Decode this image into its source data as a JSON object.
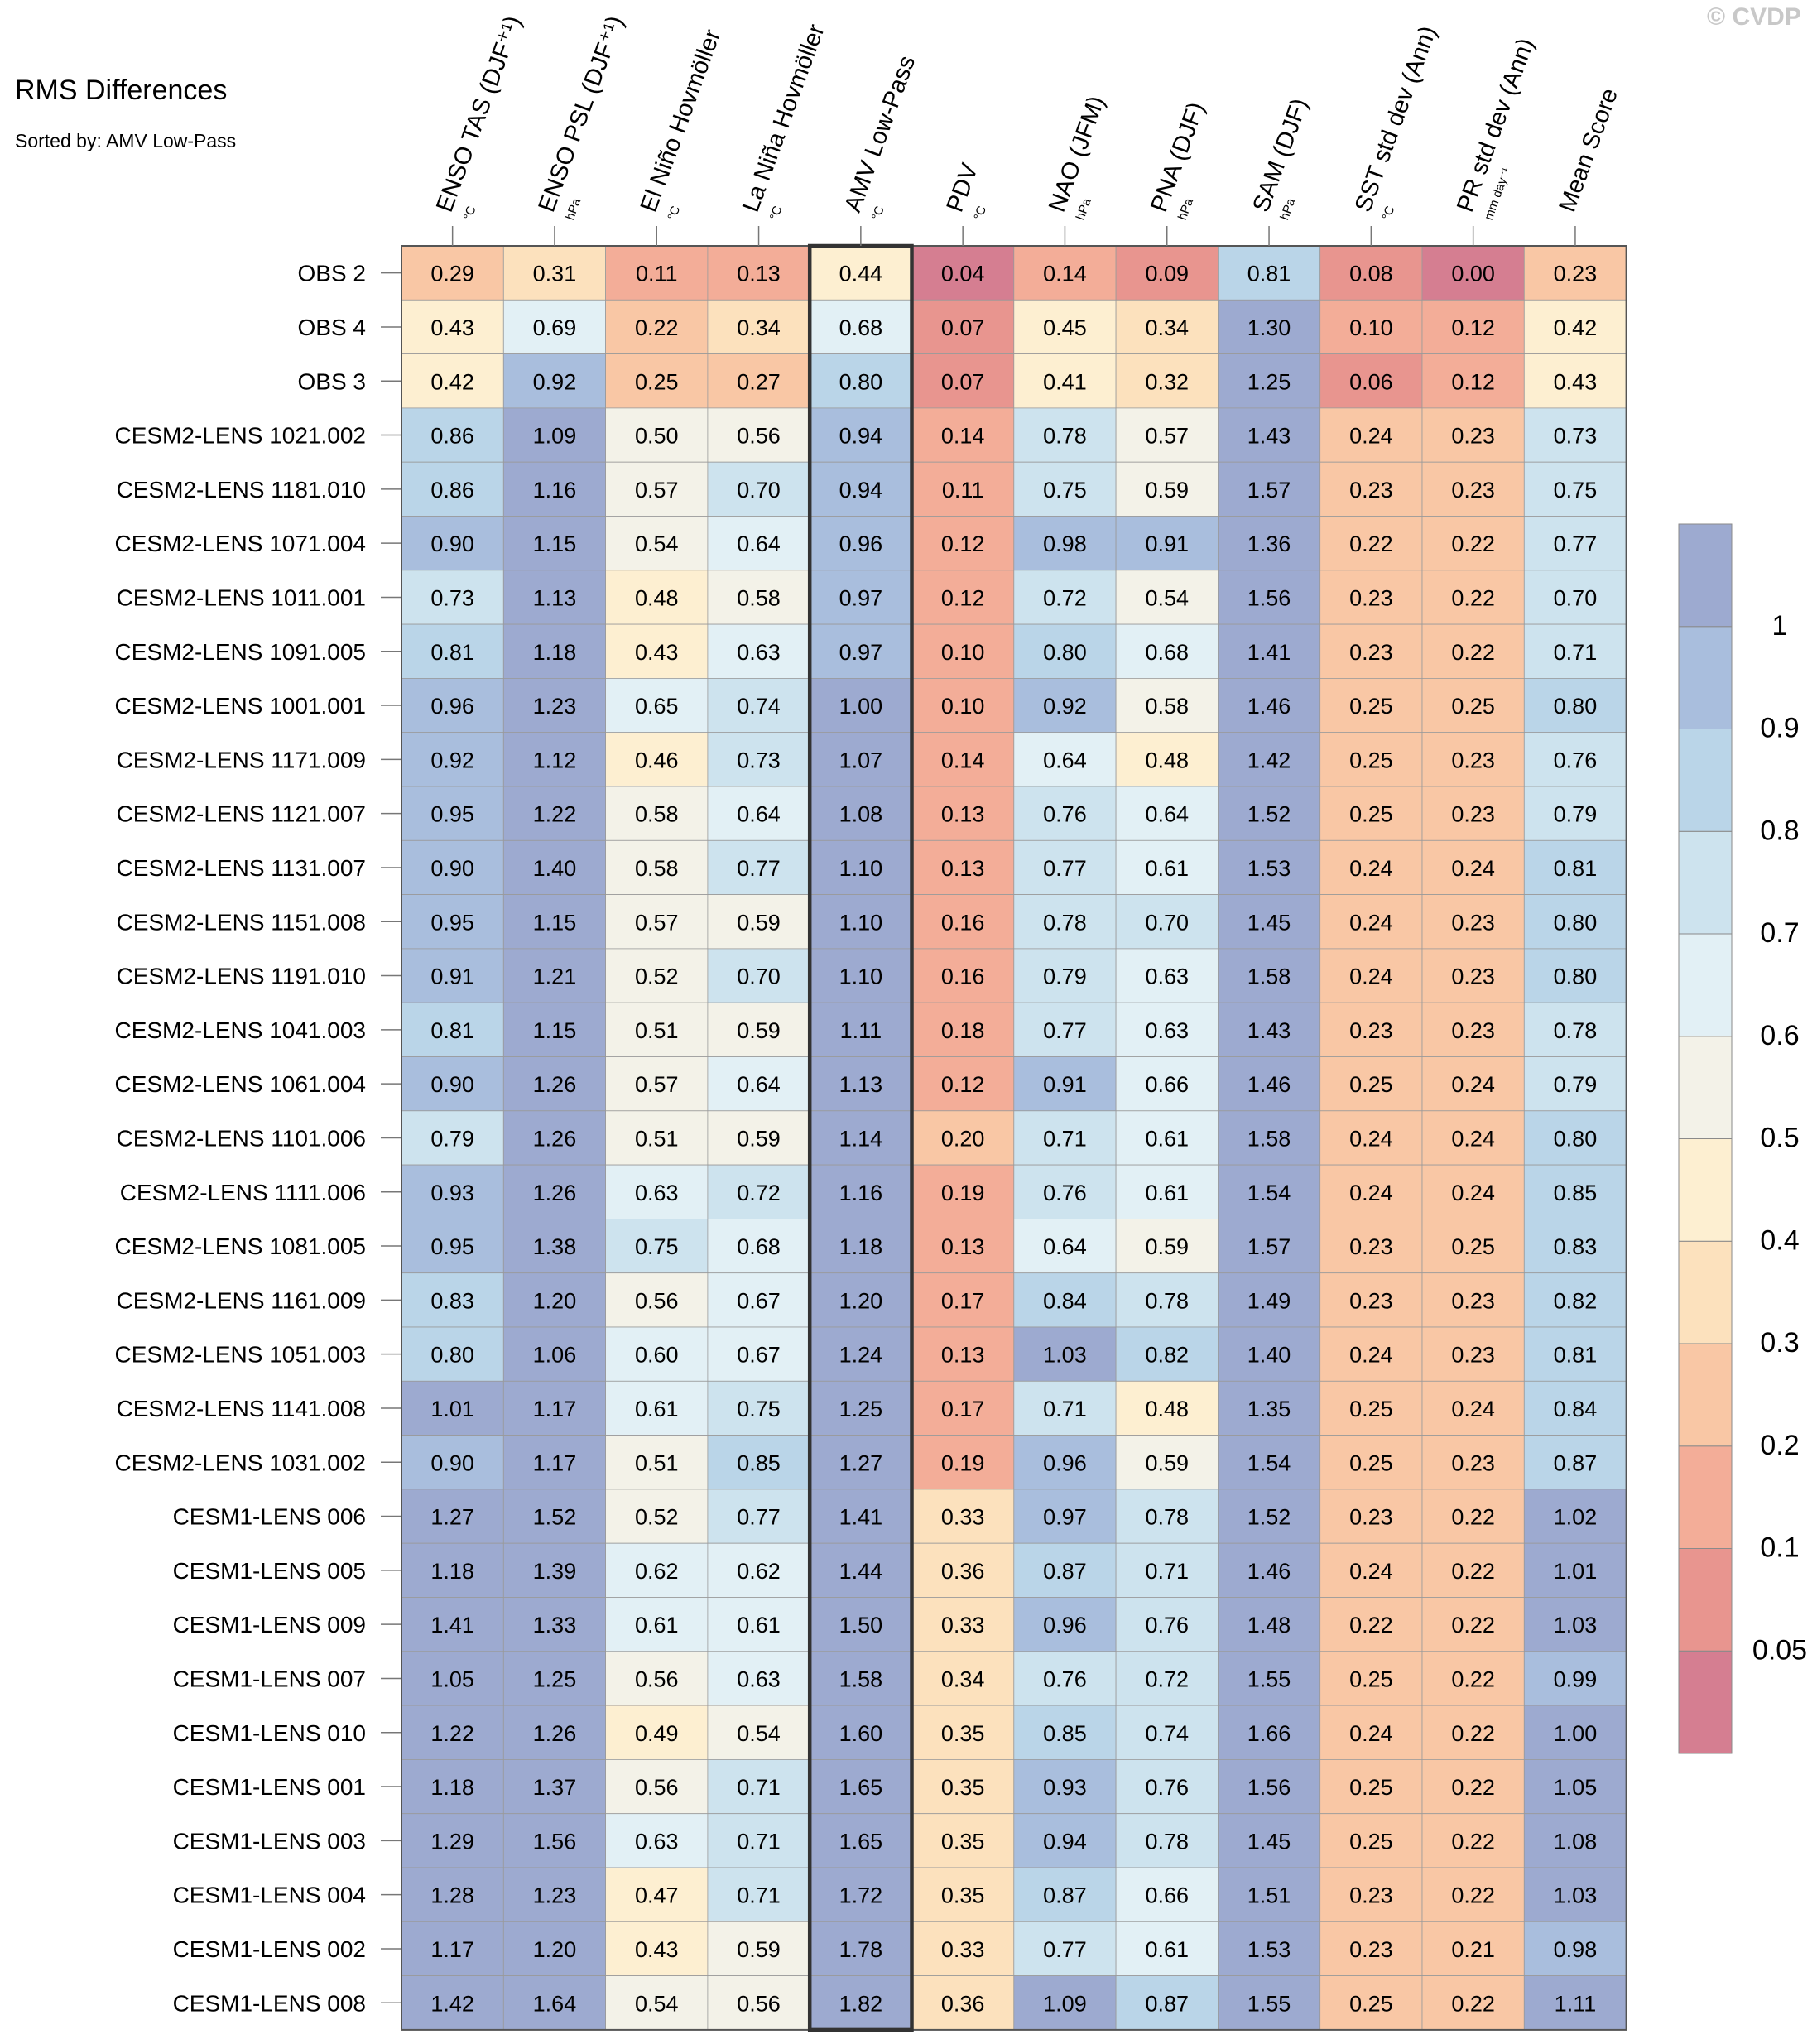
{
  "copyright": "© CVDP",
  "chart_data": {
    "type": "heatmap",
    "title": "RMS Differences",
    "subtitle": "Sorted by: AMV Low-Pass",
    "highlighted_column": "AMV Low-Pass",
    "columns": [
      {
        "label": "ENSO TAS (DJF⁺¹)",
        "unit": "°C"
      },
      {
        "label": "ENSO PSL (DJF⁺¹)",
        "unit": "hPa"
      },
      {
        "label": "El Niño Hovmöller",
        "unit": "°C"
      },
      {
        "label": "La Niña Hovmöller",
        "unit": "°C"
      },
      {
        "label": "AMV Low-Pass",
        "unit": "°C"
      },
      {
        "label": "PDV",
        "unit": "°C"
      },
      {
        "label": "NAO (JFM)",
        "unit": "hPa"
      },
      {
        "label": "PNA (DJF)",
        "unit": "hPa"
      },
      {
        "label": "SAM (DJF)",
        "unit": "hPa"
      },
      {
        "label": "SST std dev (Ann)",
        "unit": "°C"
      },
      {
        "label": "PR std dev (Ann)",
        "unit": "mm day⁻¹"
      },
      {
        "label": "Mean Score",
        "unit": ""
      }
    ],
    "rows": [
      {
        "name": "OBS 2",
        "values": [
          0.29,
          0.31,
          0.11,
          0.13,
          0.44,
          0.04,
          0.14,
          0.09,
          0.81,
          0.08,
          0.0,
          0.23
        ]
      },
      {
        "name": "OBS 4",
        "values": [
          0.43,
          0.69,
          0.22,
          0.34,
          0.68,
          0.07,
          0.45,
          0.34,
          1.3,
          0.1,
          0.12,
          0.42
        ]
      },
      {
        "name": "OBS 3",
        "values": [
          0.42,
          0.92,
          0.25,
          0.27,
          0.8,
          0.07,
          0.41,
          0.32,
          1.25,
          0.06,
          0.12,
          0.43
        ]
      },
      {
        "name": "CESM2-LENS 1021.002",
        "values": [
          0.86,
          1.09,
          0.5,
          0.56,
          0.94,
          0.14,
          0.78,
          0.57,
          1.43,
          0.24,
          0.23,
          0.73
        ]
      },
      {
        "name": "CESM2-LENS 1181.010",
        "values": [
          0.86,
          1.16,
          0.57,
          0.7,
          0.94,
          0.11,
          0.75,
          0.59,
          1.57,
          0.23,
          0.23,
          0.75
        ]
      },
      {
        "name": "CESM2-LENS 1071.004",
        "values": [
          0.9,
          1.15,
          0.54,
          0.64,
          0.96,
          0.12,
          0.98,
          0.91,
          1.36,
          0.22,
          0.22,
          0.77
        ]
      },
      {
        "name": "CESM2-LENS 1011.001",
        "values": [
          0.73,
          1.13,
          0.48,
          0.58,
          0.97,
          0.12,
          0.72,
          0.54,
          1.56,
          0.23,
          0.22,
          0.7
        ]
      },
      {
        "name": "CESM2-LENS 1091.005",
        "values": [
          0.81,
          1.18,
          0.43,
          0.63,
          0.97,
          0.1,
          0.8,
          0.68,
          1.41,
          0.23,
          0.22,
          0.71
        ]
      },
      {
        "name": "CESM2-LENS 1001.001",
        "values": [
          0.96,
          1.23,
          0.65,
          0.74,
          1.0,
          0.1,
          0.92,
          0.58,
          1.46,
          0.25,
          0.25,
          0.8
        ]
      },
      {
        "name": "CESM2-LENS 1171.009",
        "values": [
          0.92,
          1.12,
          0.46,
          0.73,
          1.07,
          0.14,
          0.64,
          0.48,
          1.42,
          0.25,
          0.23,
          0.76
        ]
      },
      {
        "name": "CESM2-LENS 1121.007",
        "values": [
          0.95,
          1.22,
          0.58,
          0.64,
          1.08,
          0.13,
          0.76,
          0.64,
          1.52,
          0.25,
          0.23,
          0.79
        ]
      },
      {
        "name": "CESM2-LENS 1131.007",
        "values": [
          0.9,
          1.4,
          0.58,
          0.77,
          1.1,
          0.13,
          0.77,
          0.61,
          1.53,
          0.24,
          0.24,
          0.81
        ]
      },
      {
        "name": "CESM2-LENS 1151.008",
        "values": [
          0.95,
          1.15,
          0.57,
          0.59,
          1.1,
          0.16,
          0.78,
          0.7,
          1.45,
          0.24,
          0.23,
          0.8
        ]
      },
      {
        "name": "CESM2-LENS 1191.010",
        "values": [
          0.91,
          1.21,
          0.52,
          0.7,
          1.1,
          0.16,
          0.79,
          0.63,
          1.58,
          0.24,
          0.23,
          0.8
        ]
      },
      {
        "name": "CESM2-LENS 1041.003",
        "values": [
          0.81,
          1.15,
          0.51,
          0.59,
          1.11,
          0.18,
          0.77,
          0.63,
          1.43,
          0.23,
          0.23,
          0.78
        ]
      },
      {
        "name": "CESM2-LENS 1061.004",
        "values": [
          0.9,
          1.26,
          0.57,
          0.64,
          1.13,
          0.12,
          0.91,
          0.66,
          1.46,
          0.25,
          0.24,
          0.79
        ]
      },
      {
        "name": "CESM2-LENS 1101.006",
        "values": [
          0.79,
          1.26,
          0.51,
          0.59,
          1.14,
          0.2,
          0.71,
          0.61,
          1.58,
          0.24,
          0.24,
          0.8
        ]
      },
      {
        "name": "CESM2-LENS 1111.006",
        "values": [
          0.93,
          1.26,
          0.63,
          0.72,
          1.16,
          0.19,
          0.76,
          0.61,
          1.54,
          0.24,
          0.24,
          0.85
        ]
      },
      {
        "name": "CESM2-LENS 1081.005",
        "values": [
          0.95,
          1.38,
          0.75,
          0.68,
          1.18,
          0.13,
          0.64,
          0.59,
          1.57,
          0.23,
          0.25,
          0.83
        ]
      },
      {
        "name": "CESM2-LENS 1161.009",
        "values": [
          0.83,
          1.2,
          0.56,
          0.67,
          1.2,
          0.17,
          0.84,
          0.78,
          1.49,
          0.23,
          0.23,
          0.82
        ]
      },
      {
        "name": "CESM2-LENS 1051.003",
        "values": [
          0.8,
          1.06,
          0.6,
          0.67,
          1.24,
          0.13,
          1.03,
          0.82,
          1.4,
          0.24,
          0.23,
          0.81
        ]
      },
      {
        "name": "CESM2-LENS 1141.008",
        "values": [
          1.01,
          1.17,
          0.61,
          0.75,
          1.25,
          0.17,
          0.71,
          0.48,
          1.35,
          0.25,
          0.24,
          0.84
        ]
      },
      {
        "name": "CESM2-LENS 1031.002",
        "values": [
          0.9,
          1.17,
          0.51,
          0.85,
          1.27,
          0.19,
          0.96,
          0.59,
          1.54,
          0.25,
          0.23,
          0.87
        ]
      },
      {
        "name": "CESM1-LENS 006",
        "values": [
          1.27,
          1.52,
          0.52,
          0.77,
          1.41,
          0.33,
          0.97,
          0.78,
          1.52,
          0.23,
          0.22,
          1.02
        ]
      },
      {
        "name": "CESM1-LENS 005",
        "values": [
          1.18,
          1.39,
          0.62,
          0.62,
          1.44,
          0.36,
          0.87,
          0.71,
          1.46,
          0.24,
          0.22,
          1.01
        ]
      },
      {
        "name": "CESM1-LENS 009",
        "values": [
          1.41,
          1.33,
          0.61,
          0.61,
          1.5,
          0.33,
          0.96,
          0.76,
          1.48,
          0.22,
          0.22,
          1.03
        ]
      },
      {
        "name": "CESM1-LENS 007",
        "values": [
          1.05,
          1.25,
          0.56,
          0.63,
          1.58,
          0.34,
          0.76,
          0.72,
          1.55,
          0.25,
          0.22,
          0.99
        ]
      },
      {
        "name": "CESM1-LENS 010",
        "values": [
          1.22,
          1.26,
          0.49,
          0.54,
          1.6,
          0.35,
          0.85,
          0.74,
          1.66,
          0.24,
          0.22,
          1.0
        ]
      },
      {
        "name": "CESM1-LENS 001",
        "values": [
          1.18,
          1.37,
          0.56,
          0.71,
          1.65,
          0.35,
          0.93,
          0.76,
          1.56,
          0.25,
          0.22,
          1.05
        ]
      },
      {
        "name": "CESM1-LENS 003",
        "values": [
          1.29,
          1.56,
          0.63,
          0.71,
          1.65,
          0.35,
          0.94,
          0.78,
          1.45,
          0.25,
          0.22,
          1.08
        ]
      },
      {
        "name": "CESM1-LENS 004",
        "values": [
          1.28,
          1.23,
          0.47,
          0.71,
          1.72,
          0.35,
          0.87,
          0.66,
          1.51,
          0.23,
          0.22,
          1.03
        ]
      },
      {
        "name": "CESM1-LENS 002",
        "values": [
          1.17,
          1.2,
          0.43,
          0.59,
          1.78,
          0.33,
          0.77,
          0.61,
          1.53,
          0.23,
          0.21,
          0.98
        ]
      },
      {
        "name": "CESM1-LENS 008",
        "values": [
          1.42,
          1.64,
          0.54,
          0.56,
          1.82,
          0.36,
          1.09,
          0.87,
          1.55,
          0.25,
          0.22,
          1.11
        ]
      }
    ],
    "colorbar": {
      "levels": [
        0.05,
        0.1,
        0.2,
        0.3,
        0.4,
        0.5,
        0.6,
        0.7,
        0.8,
        0.9,
        1
      ],
      "labels": [
        "0.05",
        "0.1",
        "0.2",
        "0.3",
        "0.4",
        "0.5",
        "0.6",
        "0.7",
        "0.8",
        "0.9",
        "1"
      ],
      "colors": [
        "#d57e91",
        "#e8958f",
        "#f3ad98",
        "#f9c7a5",
        "#fce1bd",
        "#fdefd1",
        "#f3f2e8",
        "#e2f0f5",
        "#cde3ee",
        "#bad5e8",
        "#a9bedd",
        "#9daad0"
      ]
    }
  }
}
